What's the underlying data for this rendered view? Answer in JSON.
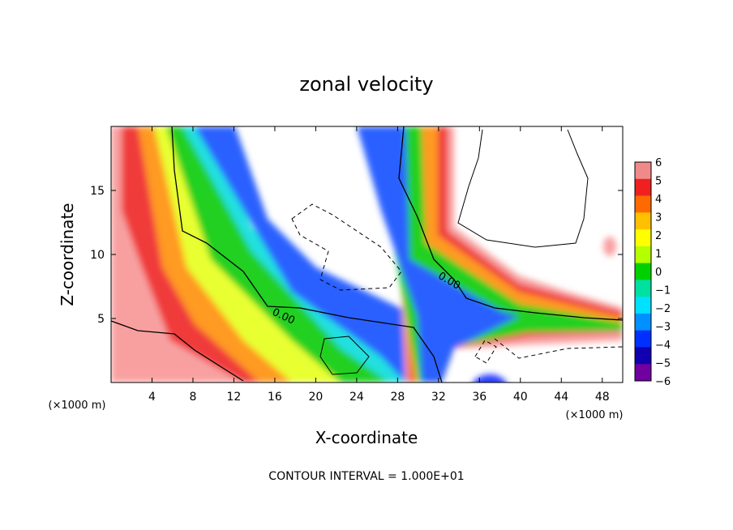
{
  "chart_data": {
    "type": "heatmap",
    "title": "zonal velocity",
    "xlabel": "X-coordinate",
    "ylabel": "Z-coordinate",
    "x_unit": "(×1000 m)",
    "y_unit": "(×1000 m)",
    "footer": "CONTOUR INTERVAL = 1.000E+01",
    "xlim": [
      0,
      50
    ],
    "ylim": [
      0,
      20
    ],
    "x_ticks": [
      "4",
      "8",
      "12",
      "16",
      "20",
      "24",
      "28",
      "32",
      "36",
      "40",
      "44",
      "48"
    ],
    "y_ticks": [
      "5",
      "10",
      "15"
    ],
    "contour_labels": [
      "0.00",
      "0.00"
    ],
    "colorbar": {
      "ticks": [
        "6",
        "5",
        "4",
        "3",
        "2",
        "1",
        "0",
        "−1",
        "−2",
        "−3",
        "−4",
        "−5",
        "−6"
      ],
      "range": [
        -6,
        6
      ],
      "colors": [
        "#f08a8a",
        "#f02020",
        "#ff6a00",
        "#ffc000",
        "#ffff00",
        "#b4ff00",
        "#00d000",
        "#00e0a0",
        "#00e0ff",
        "#0090ff",
        "#0030ff",
        "#1000b0",
        "#7000a0"
      ]
    }
  }
}
